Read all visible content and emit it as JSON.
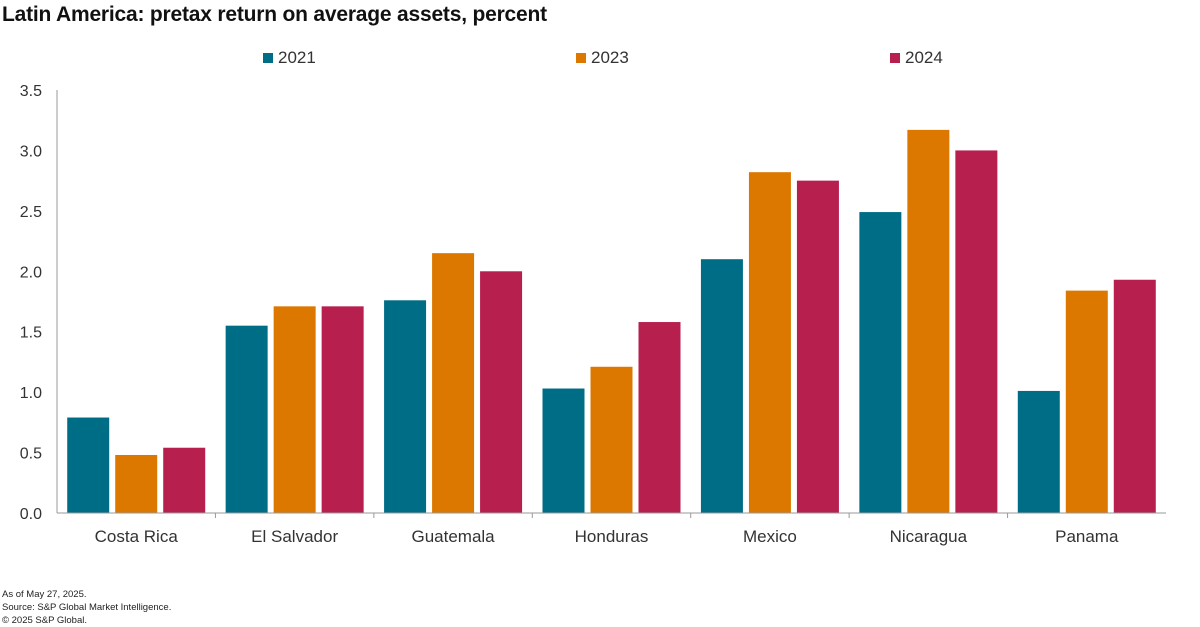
{
  "title": "Latin America: pretax return on average assets, percent",
  "chart_data": {
    "type": "bar",
    "title": "Latin America: pretax return on average assets, percent",
    "xlabel": "",
    "ylabel": "",
    "ylim": [
      0,
      3.5
    ],
    "yticks": [
      0.0,
      0.5,
      1.0,
      1.5,
      2.0,
      2.5,
      3.0,
      3.5
    ],
    "ytick_labels": [
      "0.0",
      "0.5",
      "1.0",
      "1.5",
      "2.0",
      "2.5",
      "3.0",
      "3.5"
    ],
    "grid": false,
    "legend_position": "top",
    "categories": [
      "Costa Rica",
      "El Salvador",
      "Guatemala",
      "Honduras",
      "Mexico",
      "Nicaragua",
      "Panama"
    ],
    "series": [
      {
        "name": "2021",
        "color": "#006d87",
        "values": [
          0.79,
          1.55,
          1.76,
          1.03,
          2.1,
          2.49,
          1.01
        ]
      },
      {
        "name": "2023",
        "color": "#dc7800",
        "values": [
          0.48,
          1.71,
          2.15,
          1.21,
          2.82,
          3.17,
          1.84
        ]
      },
      {
        "name": "2024",
        "color": "#b71f4f",
        "values": [
          0.54,
          1.71,
          2.0,
          1.58,
          2.75,
          3.0,
          1.93
        ]
      }
    ]
  },
  "footnotes": {
    "date": "As of May 27, 2025.",
    "source": "Source: S&P Global Market Intelligence.",
    "copyright": "© 2025 S&P Global."
  }
}
